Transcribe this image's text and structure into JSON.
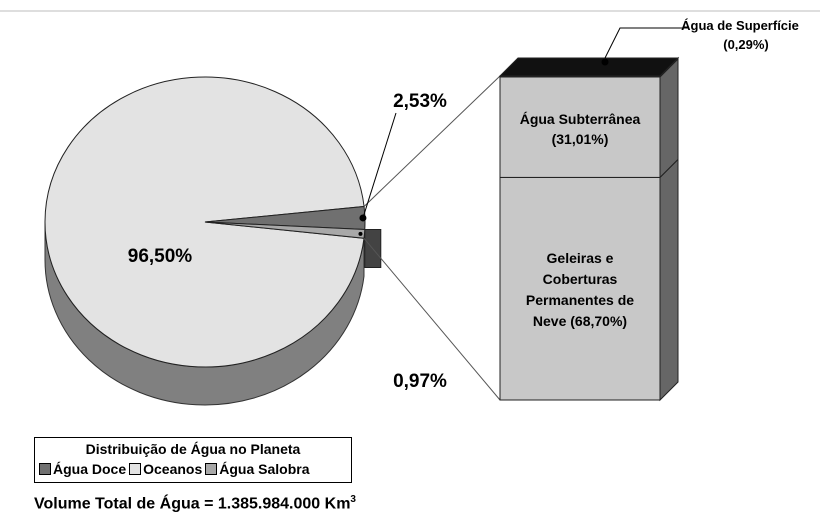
{
  "chart_data": [
    {
      "type": "pie",
      "title": "Distribuição de Água no Planeta",
      "slices": [
        {
          "name": "Oceanos",
          "value": 96.5,
          "label": "96,50%",
          "color": "#e3e3e3"
        },
        {
          "name": "Água Doce",
          "value": 2.53,
          "label": "2,53%",
          "color": "#707070"
        },
        {
          "name": "Água Salobra",
          "value": 0.97,
          "label": "0,97%",
          "color": "#a8a8a8"
        }
      ]
    },
    {
      "type": "bar",
      "stacked": true,
      "segments": [
        {
          "name": "Água de Superfície",
          "value": 0.29,
          "label_name": "Água de Superfície",
          "label_value": "(0,29%)",
          "color": "#111111"
        },
        {
          "name": "Água Subterrânea",
          "value": 31.01,
          "label_name": "Água Subterrânea",
          "label_value": "(31,01%)",
          "color": "#c8c8c8"
        },
        {
          "name": "Geleiras e Coberturas Permanentes de Neve",
          "value": 68.7,
          "label_lines": [
            "Geleiras e",
            "Coberturas",
            "Permanentes de",
            "Neve (68,70%)"
          ],
          "color": "#c8c8c8"
        }
      ]
    }
  ],
  "legend": {
    "title": "Distribuição de Água no Planeta",
    "items": [
      {
        "label": "Água Doce",
        "color": "#707070"
      },
      {
        "label": "Oceanos",
        "color": "#e3e3e3"
      },
      {
        "label": "Água Salobra",
        "color": "#a8a8a8"
      }
    ]
  },
  "footer": {
    "text": "Volume Total de Água = 1.385.984.000 Km",
    "superscript": "3"
  }
}
